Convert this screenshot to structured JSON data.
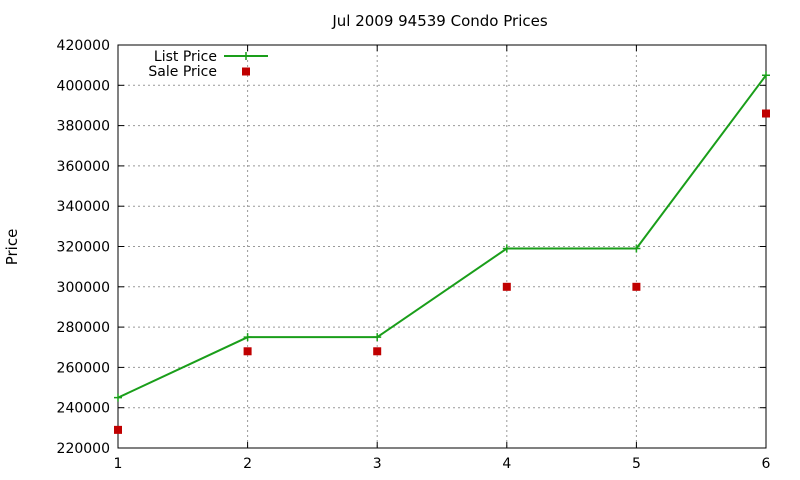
{
  "chart_data": {
    "type": "line",
    "title": "Jul 2009 94539 Condo Prices",
    "xlabel": "",
    "ylabel": "Price",
    "x": [
      1,
      2,
      3,
      4,
      5,
      6
    ],
    "xlim": [
      1,
      6
    ],
    "ylim": [
      220000,
      420000
    ],
    "xticks": [
      "1",
      "2",
      "3",
      "4",
      "5",
      "6"
    ],
    "yticks": [
      "220000",
      "240000",
      "260000",
      "280000",
      "300000",
      "320000",
      "340000",
      "360000",
      "380000",
      "400000",
      "420000"
    ],
    "grid": true,
    "legend_position": "top-left",
    "series": [
      {
        "name": "List Price",
        "style": "line-with-plus-markers",
        "color": "#1a9e1a",
        "values": [
          245000,
          275000,
          275000,
          319000,
          319000,
          405000
        ]
      },
      {
        "name": "Sale Price",
        "style": "square-markers",
        "color": "#c00000",
        "values": [
          229000,
          268000,
          268000,
          300000,
          300000,
          386000
        ]
      }
    ]
  }
}
